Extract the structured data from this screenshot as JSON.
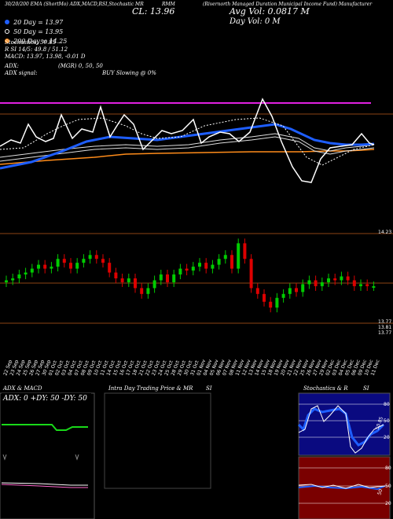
{
  "header": {
    "title_line1": "(Rivernorth Managed Duration Municipal Income Fund) Manufacturer",
    "indicators_line": "30/20/200 EMA (ShortMo) ADX,MACD,RSI,Stochastic MR",
    "ticker": "RMM",
    "close_label": "CL: 13.96",
    "avg_vol": "Avg Vol: 0.0817 M",
    "day_vol": "Day Vol: 0   M"
  },
  "legend": {
    "ema20": "20  Day  =  13.97",
    "ema50": "50  Day  =  13.95",
    "ema200": "200  Day  =  14.25",
    "stoch": "Stochastics: 50.85",
    "rsi": "R         SI 14/5: 49.8 / 51.12",
    "macd": "MACD: 13.97,  13.98,  -0.01 D",
    "adx": "ADX:",
    "adx_vals": "(MGR) 0,  50,  50",
    "adx_signal": "ADX  signal:",
    "buy_signal": "BUY Slowing @ 0%"
  },
  "price_axis": {
    "upper": "14.23",
    "lower": "13.77",
    "lower2": "13.81"
  },
  "dates": [
    "22 Sep",
    "23 Sep",
    "24 Sep",
    "25 Sep",
    "26 Sep",
    "27 Sep",
    "30 Sep",
    "01 Oct",
    "02 Oct",
    "03 Oct",
    "04 Oct",
    "07 Oct",
    "08 Oct",
    "09 Oct",
    "10 Oct",
    "11 Oct",
    "14 Oct",
    "15 Oct",
    "16 Oct",
    "17 Oct",
    "18 Oct",
    "21 Oct",
    "22 Oct",
    "23 Oct",
    "24 Oct",
    "25 Oct",
    "28 Oct",
    "29 Oct",
    "30 Oct",
    "31 Oct",
    "01 Nov",
    "04 Nov",
    "05 Nov",
    "06 Nov",
    "07 Nov",
    "08 Nov",
    "11 Nov",
    "12 Nov",
    "13 Nov",
    "14 Nov",
    "15 Nov",
    "18 Nov",
    "19 Nov",
    "20 Nov",
    "21 Nov",
    "22 Nov",
    "25 Nov",
    "26 Nov",
    "27 Nov",
    "29 Nov",
    "02 Dec",
    "03 Dec",
    "04 Dec",
    "05 Dec",
    "06 Dec",
    "09 Dec",
    "10 Dec",
    "11 Dec"
  ],
  "panels": {
    "adx_title": "ADX  & MACD",
    "adx_inner": "ADX: 0   +DY: 50   -DY: 50",
    "intraday_title": "Intra  Day Trading Price  & MR",
    "intraday_si": "SI",
    "stoch_title": "Stochastics & R",
    "stoch_si": "SI",
    "stoch_axis": [
      "80",
      "50",
      "20"
    ],
    "rsi_axis": [
      "80",
      "50",
      "20"
    ],
    "stoch_marker": "50.85",
    "rsi_marker": "50"
  },
  "colors": {
    "background": "#000000",
    "bull": "#00cc00",
    "bear": "#dd0000",
    "ema20": "#1e5eff",
    "ema50": "#ffffff",
    "ema200": "#ff8c1a",
    "line_magenta": "#e020e0",
    "stoch_bg": "#0a0a80",
    "rsi_bg": "#7a0000"
  },
  "chart_data": {
    "type": "candlestick",
    "ticker": "RMM",
    "series": [
      {
        "name": "Close",
        "values": [
          13.99,
          14.0,
          14.02,
          14.03,
          14.05,
          14.07,
          14.05,
          14.06,
          14.1,
          14.08,
          14.05,
          14.08,
          14.1,
          14.12,
          14.1,
          14.08,
          14.03,
          14.0,
          13.98,
          14.0,
          13.95,
          13.92,
          13.95,
          13.99,
          14.02,
          13.98,
          14.02,
          14.05,
          14.04,
          14.06,
          14.08,
          14.05,
          14.07,
          14.1,
          14.12,
          14.05,
          14.18,
          14.1,
          13.95,
          13.92,
          13.88,
          13.85,
          13.9,
          13.92,
          13.95,
          13.93,
          13.97,
          13.99,
          13.96,
          13.98,
          14.0,
          13.99,
          14.01,
          13.99,
          13.96,
          13.97,
          13.96,
          13.96
        ]
      }
    ],
    "ema": {
      "20": 13.97,
      "50": 13.95,
      "200": 14.25
    },
    "ylim": [
      13.77,
      14.23
    ]
  }
}
